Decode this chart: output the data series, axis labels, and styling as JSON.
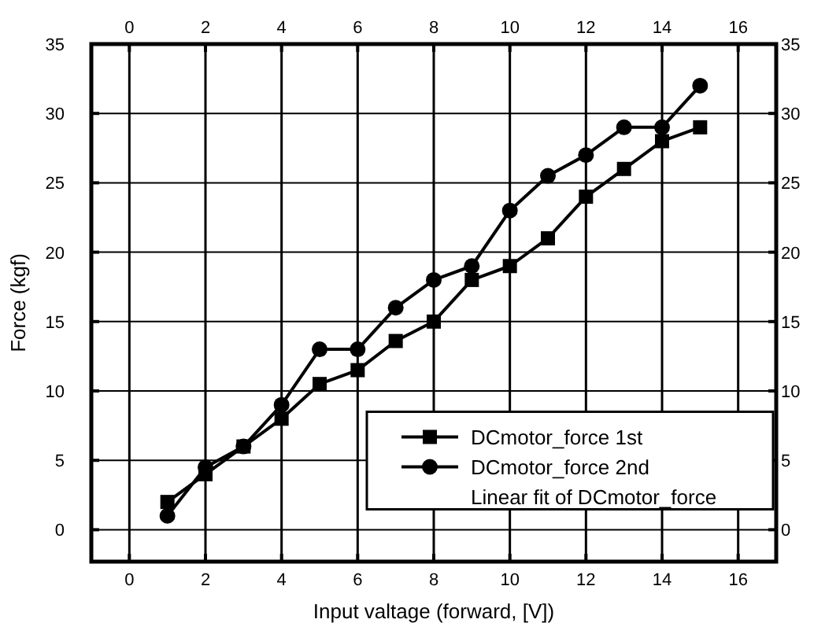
{
  "chart_data": {
    "type": "line",
    "xlabel": "Input valtage (forward, [V])",
    "ylabel": "Force (kgf)",
    "x": [
      1,
      2,
      3,
      4,
      5,
      6,
      7,
      8,
      9,
      10,
      11,
      12,
      13,
      14,
      15
    ],
    "series": [
      {
        "name": "DCmotor_force 1st",
        "color": "#000000",
        "marker": "square",
        "values": [
          2,
          4,
          6,
          8,
          10.5,
          11.5,
          13.6,
          15,
          18,
          19,
          21,
          24,
          26,
          28,
          29
        ]
      },
      {
        "name": "DCmotor_force 2nd",
        "color": "#000000",
        "marker": "circle",
        "values": [
          1,
          4.5,
          6,
          9,
          13,
          13,
          16,
          18,
          19,
          23,
          25.5,
          27,
          29,
          29,
          32
        ]
      }
    ],
    "annotations": [
      "Linear fit of DCmotor_force"
    ],
    "xlim": [
      -1,
      17
    ],
    "xticks": [
      0,
      2,
      4,
      6,
      8,
      10,
      12,
      14,
      16
    ],
    "x2lim": [
      -1,
      17
    ],
    "x2ticks": [
      0,
      2,
      4,
      6,
      8,
      10,
      12,
      14,
      16
    ],
    "ylim": [
      -2.3,
      35
    ],
    "yticks": [
      0,
      5,
      10,
      15,
      20,
      25,
      30,
      35
    ],
    "y2lim": [
      -2.3,
      35
    ],
    "y2ticks": [
      0,
      5,
      10,
      15,
      20,
      25,
      30,
      35
    ],
    "grid": true,
    "legend": "bottom right",
    "line_style": "solid"
  }
}
